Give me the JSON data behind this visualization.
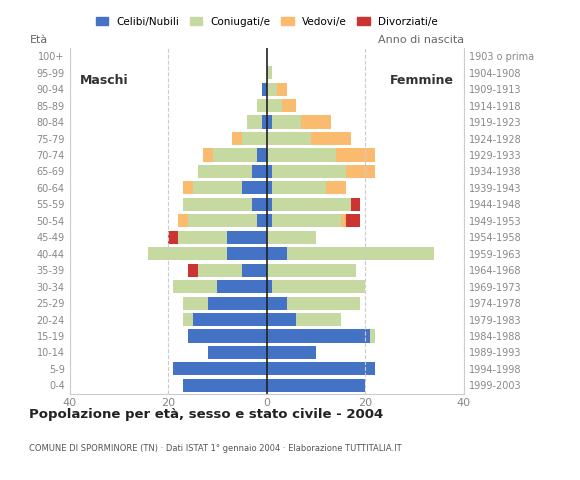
{
  "age_groups": [
    "0-4",
    "5-9",
    "10-14",
    "15-19",
    "20-24",
    "25-29",
    "30-34",
    "35-39",
    "40-44",
    "45-49",
    "50-54",
    "55-59",
    "60-64",
    "65-69",
    "70-74",
    "75-79",
    "80-84",
    "85-89",
    "90-94",
    "95-99",
    "100+"
  ],
  "birth_years": [
    "1999-2003",
    "1994-1998",
    "1989-1993",
    "1984-1988",
    "1979-1983",
    "1974-1978",
    "1969-1973",
    "1964-1968",
    "1959-1963",
    "1954-1958",
    "1949-1953",
    "1944-1948",
    "1939-1943",
    "1934-1938",
    "1929-1933",
    "1924-1928",
    "1919-1923",
    "1914-1918",
    "1909-1913",
    "1904-1908",
    "1903 o prima"
  ],
  "males": {
    "celibi": [
      17,
      19,
      12,
      16,
      15,
      12,
      10,
      5,
      8,
      8,
      2,
      3,
      5,
      3,
      2,
      0,
      1,
      0,
      1,
      0,
      0
    ],
    "coniugati": [
      0,
      0,
      0,
      0,
      2,
      5,
      9,
      9,
      16,
      10,
      14,
      14,
      10,
      11,
      9,
      5,
      3,
      2,
      0,
      0,
      0
    ],
    "vedovi": [
      0,
      0,
      0,
      0,
      0,
      0,
      0,
      0,
      0,
      0,
      2,
      0,
      2,
      0,
      2,
      2,
      0,
      0,
      0,
      0,
      0
    ],
    "divorziati": [
      0,
      0,
      0,
      0,
      0,
      0,
      0,
      2,
      0,
      2,
      0,
      0,
      0,
      0,
      0,
      0,
      0,
      0,
      0,
      0,
      0
    ]
  },
  "females": {
    "nubili": [
      20,
      22,
      10,
      21,
      6,
      4,
      1,
      0,
      4,
      0,
      1,
      1,
      1,
      1,
      0,
      0,
      1,
      0,
      0,
      0,
      0
    ],
    "coniugate": [
      0,
      0,
      0,
      1,
      9,
      15,
      19,
      18,
      30,
      10,
      14,
      16,
      11,
      15,
      14,
      9,
      6,
      3,
      2,
      1,
      0
    ],
    "vedove": [
      0,
      0,
      0,
      0,
      0,
      0,
      0,
      0,
      0,
      0,
      1,
      0,
      4,
      6,
      8,
      8,
      6,
      3,
      2,
      0,
      0
    ],
    "divorziate": [
      0,
      0,
      0,
      0,
      0,
      0,
      0,
      0,
      0,
      0,
      3,
      2,
      0,
      0,
      0,
      0,
      0,
      0,
      0,
      0,
      0
    ]
  },
  "colors": {
    "celibi": "#4472C4",
    "coniugati": "#C5D9A0",
    "vedovi": "#FABB6E",
    "divorziati": "#CC3333"
  },
  "xlim": [
    -40,
    40
  ],
  "xticks": [
    -40,
    -20,
    0,
    20,
    40
  ],
  "xticklabels": [
    "40",
    "20",
    "0",
    "20",
    "40"
  ],
  "title": "Popolazione per età, sesso e stato civile - 2004",
  "subtitle": "COMUNE DI SPORMINORE (TN) · Dati ISTAT 1° gennaio 2004 · Elaborazione TUTTITALIA.IT",
  "legend_labels": [
    "Celibi/Nubili",
    "Coniugati/e",
    "Vedovi/e",
    "Divorziati/e"
  ],
  "ylabel_left": "Età",
  "ylabel_right": "Anno di nascita",
  "label_maschi": "Maschi",
  "label_femmine": "Femmine",
  "bar_height": 0.8,
  "background_color": "#FFFFFF",
  "grid_color": "#CCCCCC",
  "tick_color": "#888888",
  "axis_label_color": "#666666"
}
